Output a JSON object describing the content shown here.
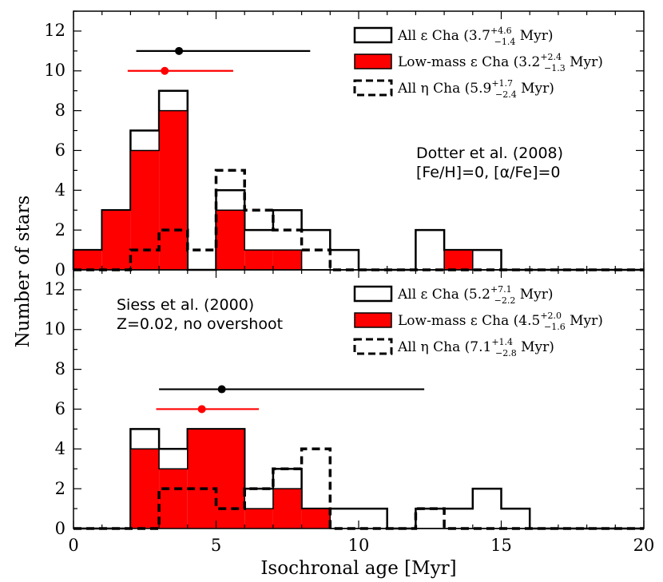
{
  "chart_data": {
    "type": "histogram",
    "xlabel": "Isochronal age [Myr]",
    "ylabel": "Number of stars",
    "xlim": [
      0,
      20
    ],
    "x_ticks": [
      "0",
      "5",
      "10",
      "15",
      "20"
    ],
    "colors": {
      "red": "#ff0000",
      "black": "#000000"
    },
    "panels": [
      {
        "name": "top",
        "ylim": [
          0,
          13
        ],
        "y_ticks": [
          "0",
          "2",
          "4",
          "6",
          "8",
          "10",
          "12"
        ],
        "annotation": [
          "Dotter et al. (2008)",
          "[Fe/H]=0, [α/Fe]=0"
        ],
        "annotation_position": "right",
        "series": [
          {
            "name": "All ε Cha",
            "style": "open-solid",
            "legend": {
              "base": "All ε Cha (3.7",
              "sup": "+4.6",
              "sub": "−1.4",
              "unit": " Myr)"
            },
            "edges": [
              0,
              1,
              2,
              3,
              4,
              5,
              6,
              7,
              8,
              9,
              10,
              11,
              12,
              13,
              14,
              15,
              16,
              17,
              18,
              19,
              20
            ],
            "counts": [
              1,
              3,
              7,
              9,
              0,
              4,
              2,
              3,
              2,
              1,
              0,
              0,
              2,
              1,
              1,
              0,
              0,
              0,
              0,
              0
            ]
          },
          {
            "name": "Low-mass ε Cha",
            "style": "filled-red",
            "legend": {
              "base": "Low-mass ε Cha (3.2",
              "sup": "+2.4",
              "sub": "−1.3",
              "unit": " Myr)"
            },
            "edges": [
              0,
              1,
              2,
              3,
              4,
              5,
              6,
              7,
              8,
              9,
              10,
              11,
              12,
              13,
              14,
              15,
              16,
              17,
              18,
              19,
              20
            ],
            "counts": [
              1,
              3,
              6,
              8,
              0,
              3,
              1,
              1,
              0,
              0,
              0,
              0,
              0,
              1,
              0,
              0,
              0,
              0,
              0,
              0
            ]
          },
          {
            "name": "All η Cha",
            "style": "open-dashed",
            "legend": {
              "base": "All η Cha (5.9",
              "sup": "+1.7",
              "sub": "−2.4",
              "unit": " Myr)"
            },
            "edges": [
              0,
              1,
              2,
              3,
              4,
              5,
              6,
              7,
              8,
              9,
              10,
              11,
              12,
              13,
              14,
              15,
              16,
              17,
              18,
              19,
              20
            ],
            "counts": [
              0,
              0,
              1,
              2,
              1,
              5,
              3,
              2,
              1,
              0,
              0,
              0,
              0,
              0,
              0,
              0,
              0,
              0,
              0,
              0
            ]
          }
        ],
        "error_bars": [
          {
            "name": "All ε Cha median",
            "color": "black",
            "center": 3.7,
            "low": 2.2,
            "high": 8.3,
            "y": 11
          },
          {
            "name": "Low-mass ε Cha median",
            "color": "red",
            "center": 3.2,
            "low": 1.9,
            "high": 5.6,
            "y": 10
          }
        ]
      },
      {
        "name": "bottom",
        "ylim": [
          0,
          13
        ],
        "y_ticks": [
          "0",
          "2",
          "4",
          "6",
          "8",
          "10",
          "12"
        ],
        "annotation": [
          "Siess et al. (2000)",
          "Z=0.02, no overshoot"
        ],
        "annotation_position": "left",
        "series": [
          {
            "name": "All ε Cha",
            "style": "open-solid",
            "legend": {
              "base": "All ε Cha (5.2",
              "sup": "+7.1",
              "sub": "−2.2",
              "unit": " Myr)"
            },
            "edges": [
              0,
              1,
              2,
              3,
              4,
              5,
              6,
              7,
              8,
              9,
              10,
              11,
              12,
              13,
              14,
              15,
              16,
              17,
              18,
              19,
              20
            ],
            "counts": [
              0,
              0,
              5,
              4,
              5,
              5,
              2,
              3,
              1,
              1,
              1,
              0,
              1,
              1,
              2,
              1,
              0,
              0,
              0,
              0
            ]
          },
          {
            "name": "Low-mass ε Cha",
            "style": "filled-red",
            "legend": {
              "base": "Low-mass ε Cha (4.5",
              "sup": "+2.0",
              "sub": "−1.6",
              "unit": " Myr)"
            },
            "edges": [
              0,
              1,
              2,
              3,
              4,
              5,
              6,
              7,
              8,
              9,
              10,
              11,
              12,
              13,
              14,
              15,
              16,
              17,
              18,
              19,
              20
            ],
            "counts": [
              0,
              0,
              4,
              3,
              5,
              5,
              1,
              2,
              1,
              0,
              0,
              0,
              0,
              0,
              0,
              0,
              0,
              0,
              0,
              0
            ]
          },
          {
            "name": "All η Cha",
            "style": "open-dashed",
            "legend": {
              "base": "All η Cha (7.1",
              "sup": "+1.4",
              "sub": "−2.8",
              "unit": " Myr)"
            },
            "edges": [
              0,
              1,
              2,
              3,
              4,
              5,
              6,
              7,
              8,
              9,
              10,
              11,
              12,
              13,
              14,
              15,
              16,
              17,
              18,
              19,
              20
            ],
            "counts": [
              0,
              0,
              0,
              2,
              2,
              1,
              2,
              3,
              4,
              0,
              0,
              0,
              1,
              0,
              0,
              0,
              0,
              0,
              0,
              0
            ]
          }
        ],
        "error_bars": [
          {
            "name": "All ε Cha median",
            "color": "black",
            "center": 5.2,
            "low": 3.0,
            "high": 12.3,
            "y": 7
          },
          {
            "name": "Low-mass ε Cha median",
            "color": "red",
            "center": 4.5,
            "low": 2.9,
            "high": 6.5,
            "y": 6
          }
        ]
      }
    ]
  }
}
